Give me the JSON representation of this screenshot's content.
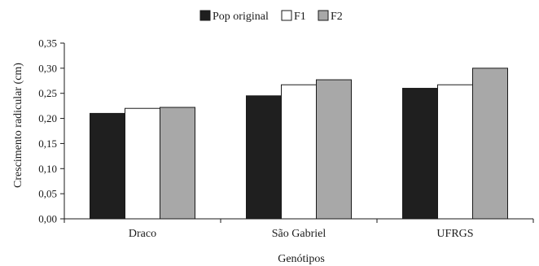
{
  "chart_data": {
    "type": "bar",
    "title": "",
    "xlabel": "Genótipos",
    "ylabel": "Crescimento radicular (cm)",
    "ylim": [
      0,
      0.35
    ],
    "yticks": [
      "0,00",
      "0,05",
      "0,10",
      "0,15",
      "0,20",
      "0,25",
      "0,30",
      "0,35"
    ],
    "categories": [
      "Draco",
      "São Gabriel",
      "UFRGS"
    ],
    "series": [
      {
        "name": "Pop original",
        "values": [
          0.21,
          0.245,
          0.26
        ],
        "color": "#1f1f1f"
      },
      {
        "name": "F1",
        "values": [
          0.22,
          0.267,
          0.267
        ],
        "color": "#ffffff"
      },
      {
        "name": "F2",
        "values": [
          0.222,
          0.277,
          0.3
        ],
        "color": "#a8a8a8"
      }
    ],
    "legend_position": "top-center",
    "grid": false
  }
}
